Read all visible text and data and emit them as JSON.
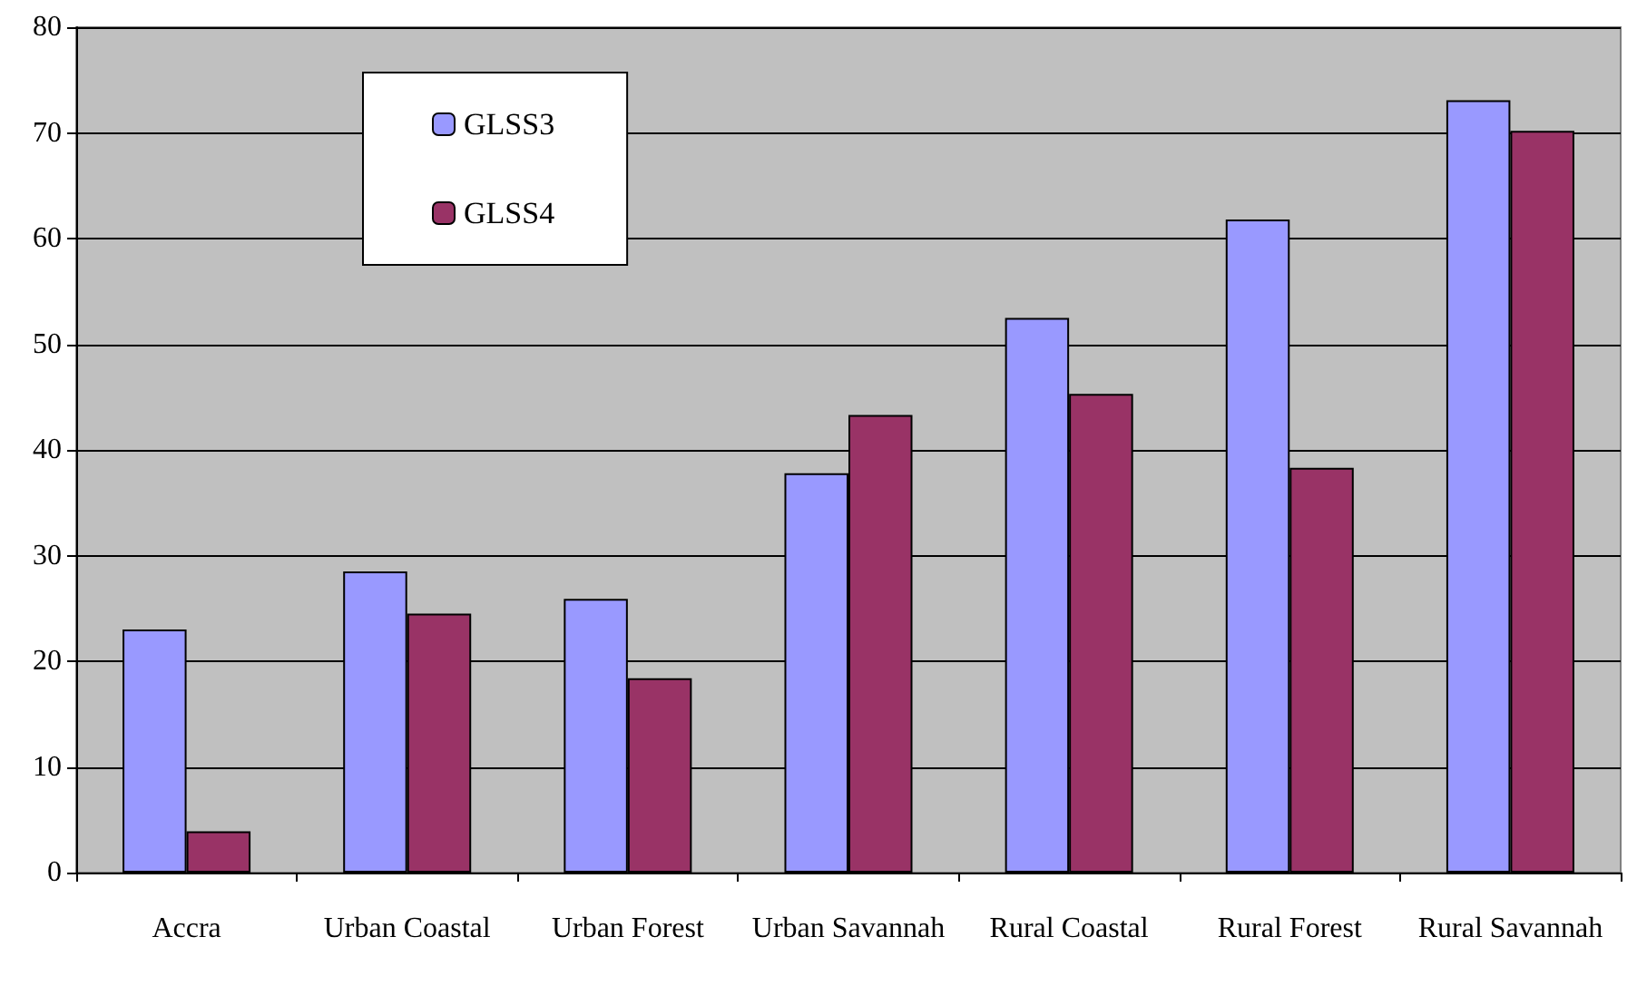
{
  "chart_data": {
    "type": "bar",
    "categories": [
      "Accra",
      "Urban Coastal",
      "Urban Forest",
      "Urban Savannah",
      "Rural Coastal",
      "Rural Forest",
      "Rural Savannah"
    ],
    "series": [
      {
        "name": "GLSS3",
        "color": "#9999ff",
        "values": [
          23.0,
          28.5,
          25.9,
          37.8,
          52.5,
          61.8,
          73.1
        ]
      },
      {
        "name": "GLSS4",
        "color": "#993366",
        "values": [
          3.9,
          24.5,
          18.4,
          43.3,
          45.3,
          38.3,
          70.2
        ]
      }
    ],
    "ylim": [
      0,
      80
    ],
    "yticks": [
      0,
      10,
      20,
      30,
      40,
      50,
      60,
      70,
      80
    ],
    "grid": "y",
    "legend": "top left"
  }
}
